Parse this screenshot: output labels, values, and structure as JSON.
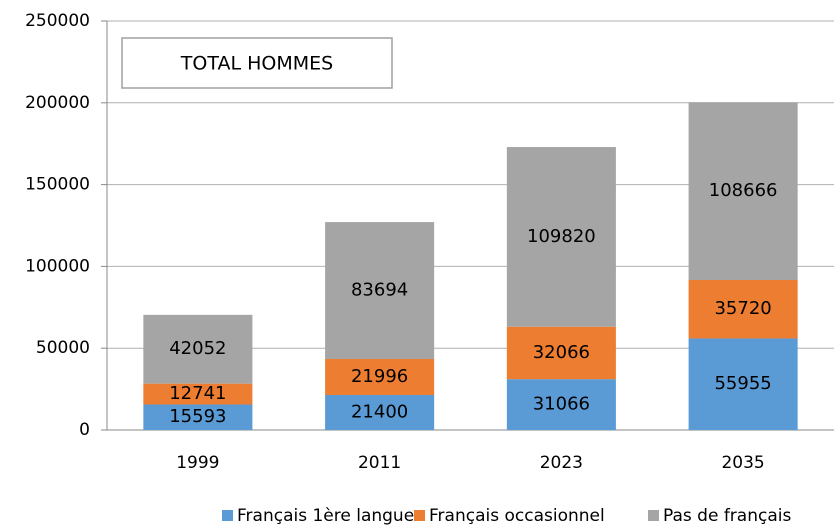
{
  "chart_data": {
    "type": "stacked_bar",
    "title": "TOTAL HOMMES",
    "categories": [
      "1999",
      "2011",
      "2023",
      "2035"
    ],
    "series": [
      {
        "name": "Français 1ère langue",
        "color": "#5b9bd5",
        "values": [
          15593,
          21400,
          31066,
          55955
        ]
      },
      {
        "name": "Français occasionnel",
        "color": "#ed7d31",
        "values": [
          12741,
          21996,
          32066,
          35720
        ]
      },
      {
        "name": "Pas de français",
        "color": "#a5a5a5",
        "values": [
          42052,
          83694,
          109820,
          108666
        ]
      }
    ],
    "ylim": [
      0,
      250000
    ],
    "yticks": [
      0,
      50000,
      100000,
      150000,
      200000,
      250000
    ],
    "grid": true,
    "legend": "bottom"
  }
}
